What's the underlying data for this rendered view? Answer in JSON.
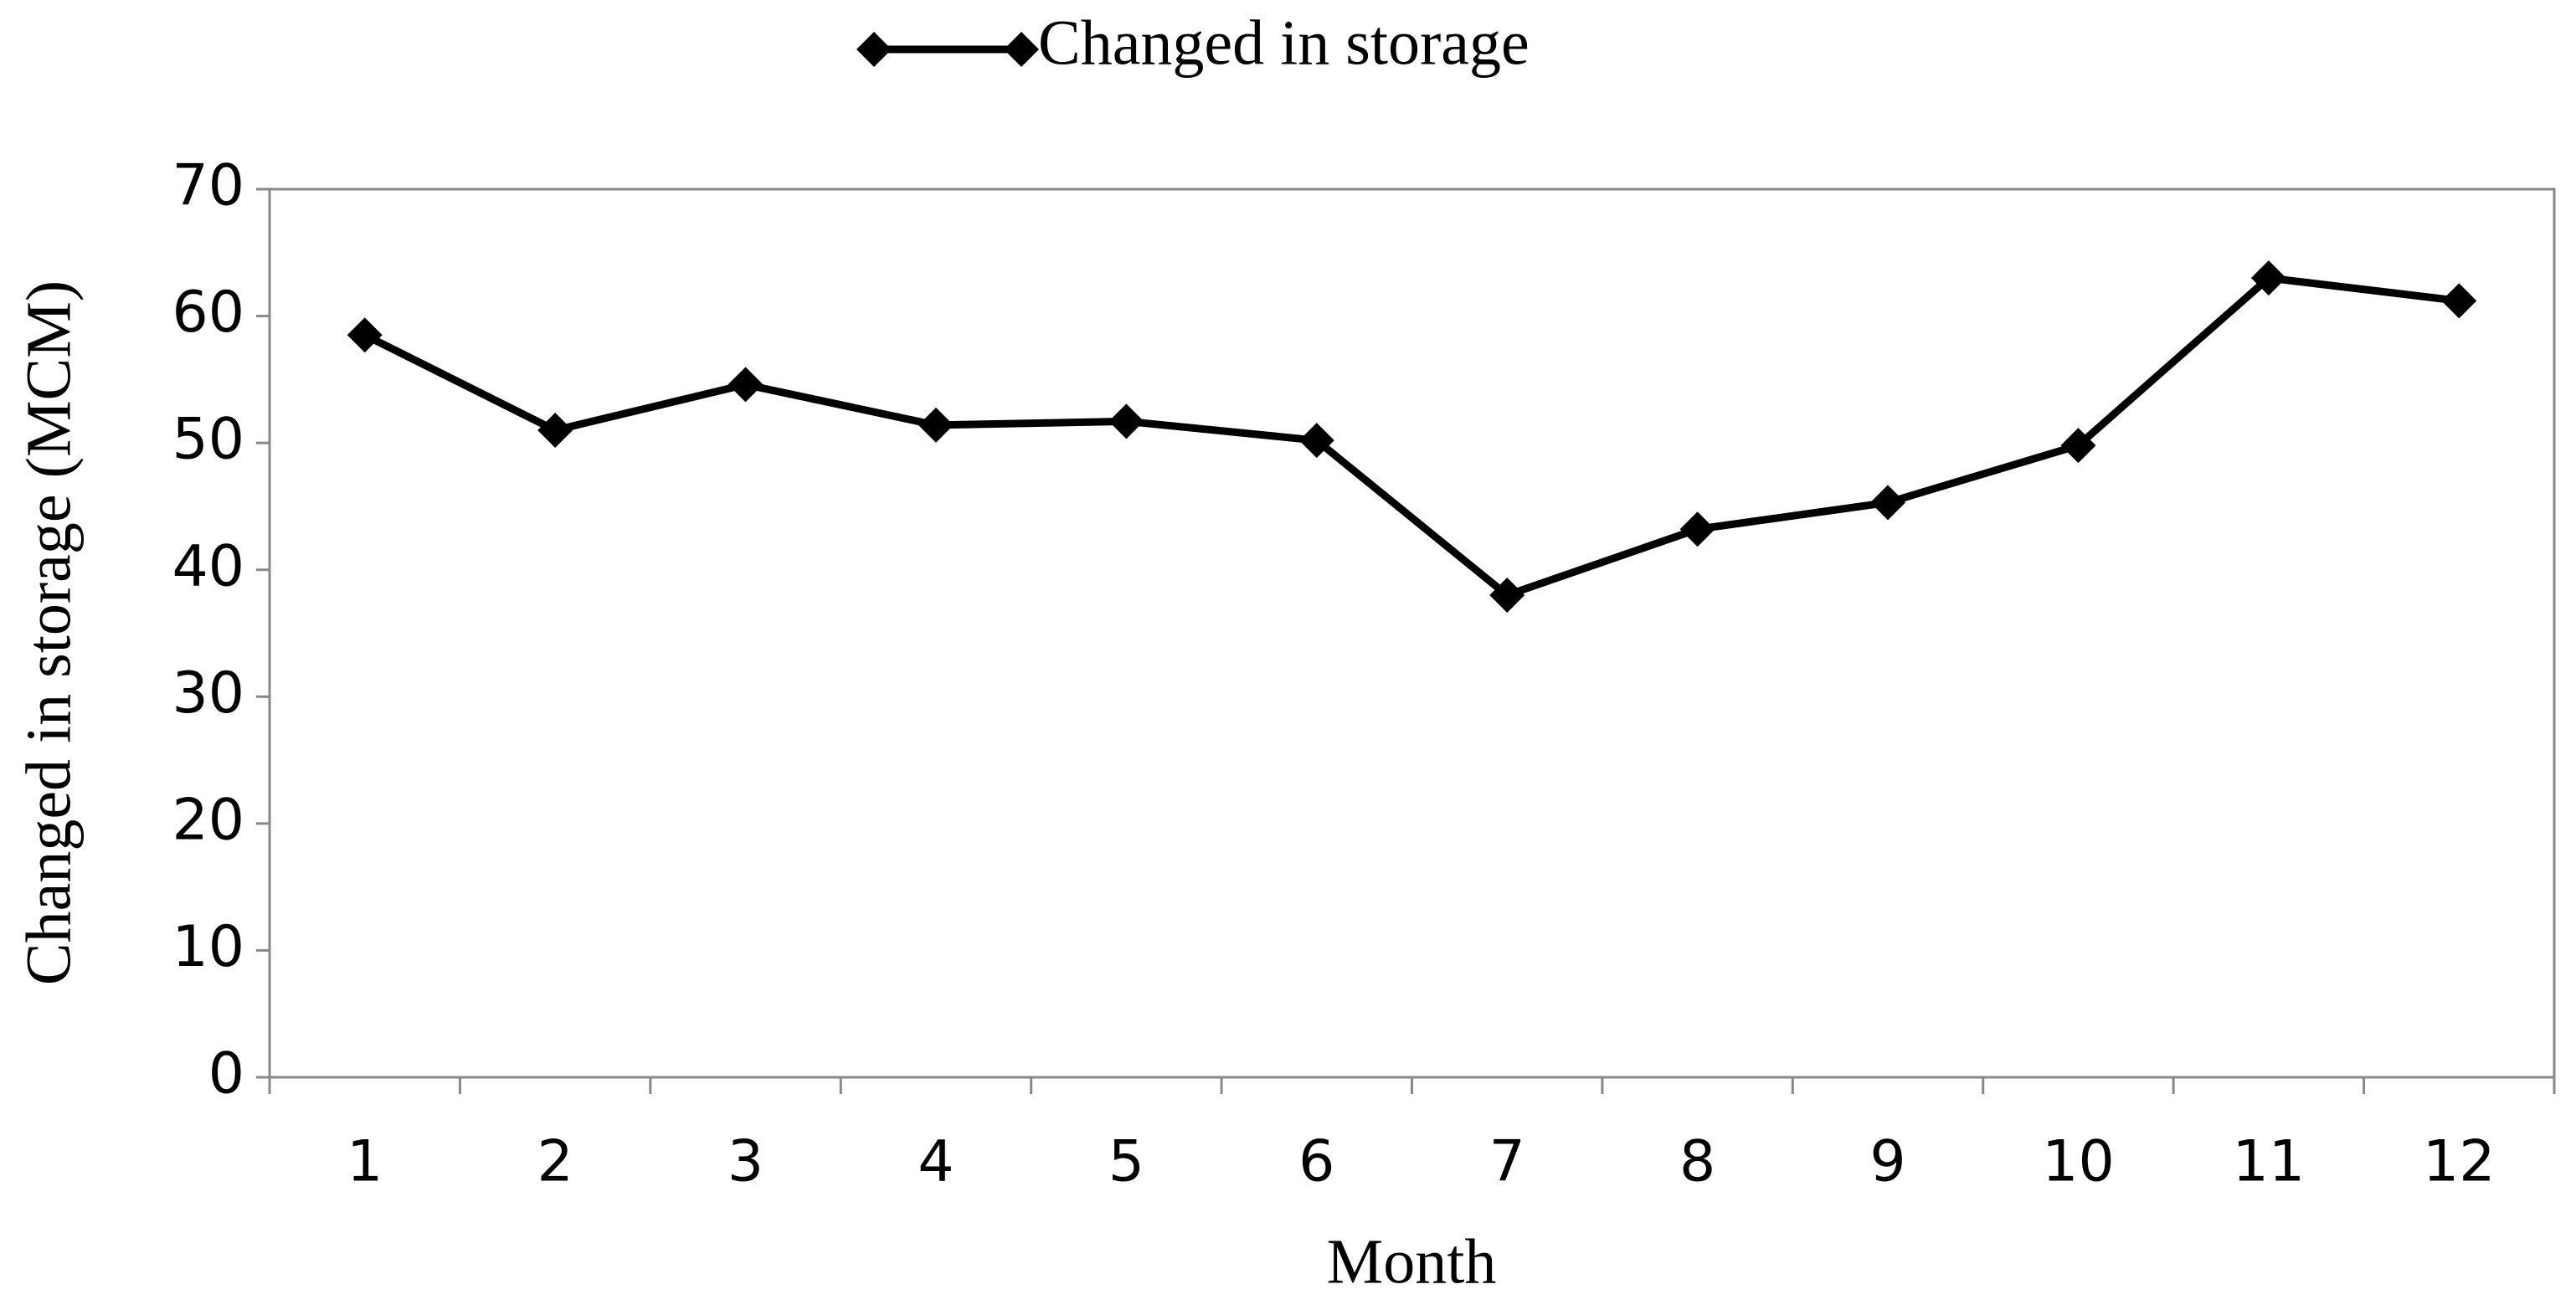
{
  "chart_data": {
    "type": "line",
    "x_label": "Month",
    "y_label": "Changed in storage (MCM)",
    "categories": [
      "1",
      "2",
      "3",
      "4",
      "5",
      "6",
      "7",
      "8",
      "9",
      "10",
      "11",
      "12"
    ],
    "series": [
      {
        "name": "Changed in storage",
        "color": "#000000",
        "values": [
          58.5,
          51.0,
          54.6,
          51.4,
          51.7,
          50.2,
          38.0,
          43.2,
          45.3,
          49.8,
          63.0,
          61.2
        ]
      }
    ],
    "ylim": [
      0,
      70
    ],
    "yticks": [
      0,
      10,
      20,
      30,
      40,
      50,
      60,
      70
    ],
    "grid": false,
    "legend": "top"
  }
}
